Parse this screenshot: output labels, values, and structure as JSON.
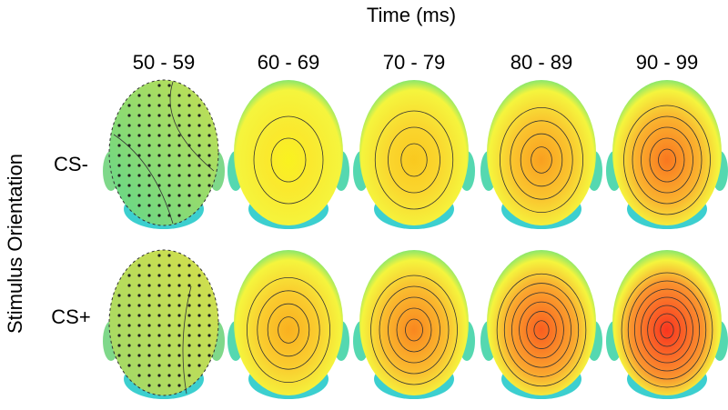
{
  "figure": {
    "title": "Time (ms)",
    "y_label": "Stimulus Orientation",
    "columns": [
      "50 - 59",
      "60 - 69",
      "70 - 79",
      "80 - 89",
      "90 - 99"
    ],
    "rows": [
      "CS-",
      "CS+"
    ]
  }
}
